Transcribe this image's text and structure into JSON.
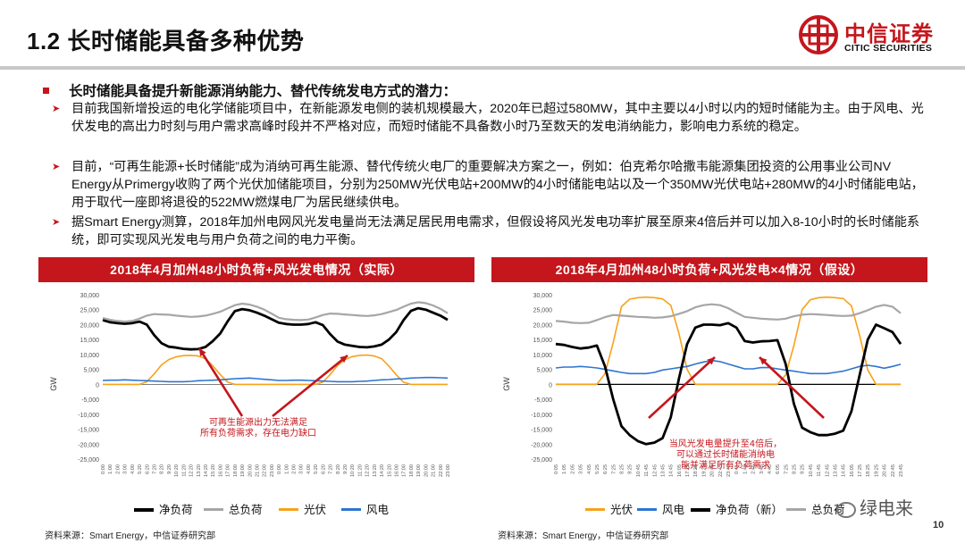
{
  "header": {
    "title": "1.2 长时储能具备多种优势",
    "logo_cn": "中信证券",
    "logo_en": "CITIC SECURITIES"
  },
  "main_bullet": "长时储能具备提升新能源消纳能力、替代传统发电方式的潜力：",
  "sub_bullets": [
    "目前我国新增投运的电化学储能项目中，在新能源发电侧的装机规模最大，2020年已超过580MW，其中主要以4小时以内的短时储能为主。由于风电、光伏发电的高出力时刻与用户需求高峰时段并不严格对应，而短时储能不具备数小时乃至数天的发电消纳能力，影响电力系统的稳定。",
    "目前，“可再生能源+长时储能”成为消纳可再生能源、替代传统火电厂的重要解决方案之一，例如：伯克希尔哈撒韦能源集团投资的公用事业公司NV Energy从Primergy收购了两个光伏加储能项目，分别为250MW光伏电站+200MW的4小时储能电站以及一个350MW光伏电站+280MW的4小时储能电站，用于取代一座即将退役的522MW燃煤电厂为居民继续供电。",
    "据Smart Energy测算，2018年加州电网风光发电量尚无法满足居民用电需求，但假设将风光发电功率扩展至原来4倍后并可以加入8-10小时的长时储能系统，即可实现风光发电与用户负荷之间的电力平衡。"
  ],
  "chart_data": [
    {
      "type": "line",
      "title": "2018年4月加州48小时负荷+风光发电情况（实际）",
      "ylabel": "GW",
      "ylim": [
        -25000,
        30000
      ],
      "yticks": [
        "30,000",
        "25,000",
        "20,000",
        "15,000",
        "10,000",
        "5,000",
        "0",
        "-5,000",
        "-10,000",
        "-15,000",
        "-20,000",
        "-25,000"
      ],
      "x": [
        "0:00",
        "1:00",
        "2:00",
        "3:00",
        "4:00",
        "5:20",
        "6:20",
        "7:20",
        "8:20",
        "9:20",
        "10:20",
        "11:20",
        "12:20",
        "13:20",
        "14:20",
        "15:20",
        "16:00",
        "17:00",
        "18:00",
        "19:00",
        "20:00",
        "21:00",
        "22:00",
        "23:00",
        "0:00",
        "1:00",
        "2:00",
        "3:00",
        "4:00",
        "5:20",
        "6:20",
        "7:20",
        "8:20",
        "9:20",
        "10:20",
        "11:20",
        "12:20",
        "13:20",
        "14:20",
        "15:20",
        "16:00",
        "17:00",
        "18:00",
        "19:00",
        "20:00",
        "21:00",
        "22:00",
        "23:00"
      ],
      "annotation": [
        "可再生能源出力无法满足",
        "所有负荷需求，存在电力缺口"
      ],
      "series": [
        {
          "name": "净负荷",
          "color": "#000000",
          "values": [
            21500,
            20800,
            20500,
            20300,
            20500,
            21000,
            20000,
            16500,
            13800,
            12600,
            12300,
            11900,
            11700,
            11800,
            12500,
            14500,
            17000,
            21000,
            24500,
            25200,
            24800,
            24000,
            23000,
            21800,
            20600,
            20200,
            20000,
            20000,
            20200,
            20800,
            19800,
            16800,
            14300,
            13300,
            12900,
            12500,
            12400,
            12700,
            13300,
            15000,
            17500,
            21500,
            24600,
            25500,
            25000,
            24000,
            23000,
            21600
          ]
        },
        {
          "name": "总负荷",
          "color": "#a6a6a6",
          "values": [
            22200,
            21600,
            21200,
            21000,
            21200,
            22000,
            23000,
            23500,
            23400,
            23300,
            23000,
            22800,
            22600,
            22700,
            23000,
            23600,
            24300,
            25400,
            26500,
            27000,
            26700,
            26000,
            25000,
            23700,
            22300,
            21800,
            21600,
            21500,
            21700,
            22400,
            23200,
            23700,
            23600,
            23400,
            23200,
            23000,
            22900,
            23100,
            23500,
            24200,
            24900,
            26000,
            27000,
            27500,
            27200,
            26400,
            25300,
            23800
          ]
        },
        {
          "name": "光伏",
          "color": "#f7a21b",
          "values": [
            0,
            0,
            0,
            0,
            0,
            0,
            900,
            3500,
            6500,
            8300,
            9200,
            9600,
            9700,
            9500,
            8600,
            6200,
            3300,
            800,
            0,
            0,
            0,
            0,
            0,
            0,
            0,
            0,
            0,
            0,
            0,
            0,
            800,
            3300,
            6300,
            8300,
            9300,
            9700,
            9800,
            9500,
            8600,
            6100,
            3200,
            700,
            0,
            0,
            0,
            0,
            0,
            0
          ]
        },
        {
          "name": "风电",
          "color": "#2e75d1",
          "values": [
            1300,
            1400,
            1400,
            1500,
            1400,
            1300,
            1200,
            1100,
            1000,
            900,
            900,
            900,
            1000,
            1200,
            1300,
            1400,
            1500,
            1700,
            1900,
            2000,
            2100,
            1900,
            1700,
            1500,
            1300,
            1300,
            1400,
            1400,
            1300,
            1200,
            1100,
            1000,
            900,
            900,
            900,
            1000,
            1100,
            1300,
            1500,
            1600,
            1800,
            1900,
            2100,
            2200,
            2300,
            2300,
            2200,
            2100
          ]
        }
      ]
    },
    {
      "type": "line",
      "title": "2018年4月加州48小时负荷+风光发电×4情况（假设）",
      "ylabel": "GW",
      "ylim": [
        -25000,
        30000
      ],
      "yticks": [
        "30,000",
        "25,000",
        "20,000",
        "15,000",
        "10,000",
        "5,000",
        "0",
        "-5,000",
        "-10,000",
        "-15,000",
        "-20,000",
        "-25,000"
      ],
      "x": [
        "0:05",
        "1:05",
        "2:05",
        "3:05",
        "4:05",
        "5:25",
        "6:25",
        "7:25",
        "8:25",
        "9:25",
        "10:45",
        "11:45",
        "12:45",
        "13:45",
        "14:45",
        "16:05",
        "17:25",
        "18:25",
        "19:25",
        "20:45",
        "22:45",
        "23:45",
        "0:45",
        "1:45",
        "2:45",
        "3:45",
        "4:45",
        "6:05",
        "7:25",
        "8:25",
        "9:25",
        "10:45",
        "11:45",
        "12:45",
        "13:45",
        "14:45",
        "16:05",
        "17:25",
        "18:25",
        "19:25",
        "20:45",
        "22:45",
        "23:45"
      ],
      "annotation": [
        "当风光发电量提升至4倍后，",
        "可以通过长时储能消纳电",
        "能并满足所有负荷需求"
      ],
      "series": [
        {
          "name": "光伏",
          "color": "#f7a21b",
          "values": [
            0,
            0,
            0,
            0,
            0,
            0,
            3600,
            14000,
            26000,
            28500,
            29000,
            29200,
            29000,
            28600,
            26500,
            17000,
            5000,
            0,
            0,
            0,
            0,
            0,
            0,
            0,
            0,
            0,
            0,
            0,
            3200,
            13000,
            25000,
            28300,
            29000,
            29200,
            29000,
            28700,
            26300,
            16500,
            4800,
            0,
            0,
            0,
            0
          ]
        },
        {
          "name": "风电",
          "color": "#2e75d1",
          "values": [
            5500,
            5800,
            5800,
            6000,
            5800,
            5500,
            5000,
            4500,
            4000,
            3600,
            3600,
            3600,
            4000,
            4800,
            5200,
            5600,
            6000,
            6800,
            7500,
            8000,
            7600,
            6800,
            6000,
            5200,
            5200,
            5600,
            5600,
            5200,
            4800,
            4400,
            4000,
            3600,
            3600,
            3600,
            4000,
            4400,
            5200,
            6000,
            6400,
            6000,
            5400,
            6000,
            6700
          ]
        },
        {
          "name": "净负荷（新）",
          "color": "#000000",
          "values": [
            13500,
            13200,
            12500,
            12000,
            12300,
            13000,
            6000,
            -5000,
            -14000,
            -17000,
            -19000,
            -20000,
            -19500,
            -18000,
            -11000,
            2000,
            13500,
            19000,
            20000,
            20000,
            19800,
            20500,
            19000,
            14500,
            14000,
            14400,
            14500,
            14800,
            6800,
            -6500,
            -14500,
            -16000,
            -17000,
            -17000,
            -16500,
            -15500,
            -9000,
            3000,
            15000,
            20000,
            18800,
            17500,
            13500
          ]
        },
        {
          "name": "总负荷",
          "color": "#a6a6a6",
          "values": [
            21200,
            21000,
            20600,
            20500,
            20600,
            21500,
            22500,
            23200,
            23000,
            22800,
            22600,
            22500,
            22300,
            22400,
            22800,
            23600,
            24500,
            25800,
            26500,
            26800,
            26500,
            25500,
            24000,
            22600,
            22300,
            22000,
            21800,
            21700,
            22000,
            22800,
            23300,
            23500,
            23400,
            23200,
            23000,
            22900,
            23000,
            23800,
            24800,
            26000,
            26600,
            26000,
            23800
          ]
        }
      ]
    }
  ],
  "legend_left": [
    "净负荷",
    "总负荷",
    "光伏",
    "风电"
  ],
  "legend_right": [
    "光伏",
    "风电",
    "净负荷（新）",
    "总负荷"
  ],
  "source_left": "资料来源：Smart Energy，中信证券研究部",
  "source_right": "资料来源：Smart Energy，中信证券研究部",
  "page_number": "10",
  "watermark": "绿电来",
  "colors": {
    "brand": "#c4161c",
    "solar": "#f7a21b",
    "wind": "#2e75d1",
    "net": "#000000",
    "total": "#a6a6a6"
  }
}
